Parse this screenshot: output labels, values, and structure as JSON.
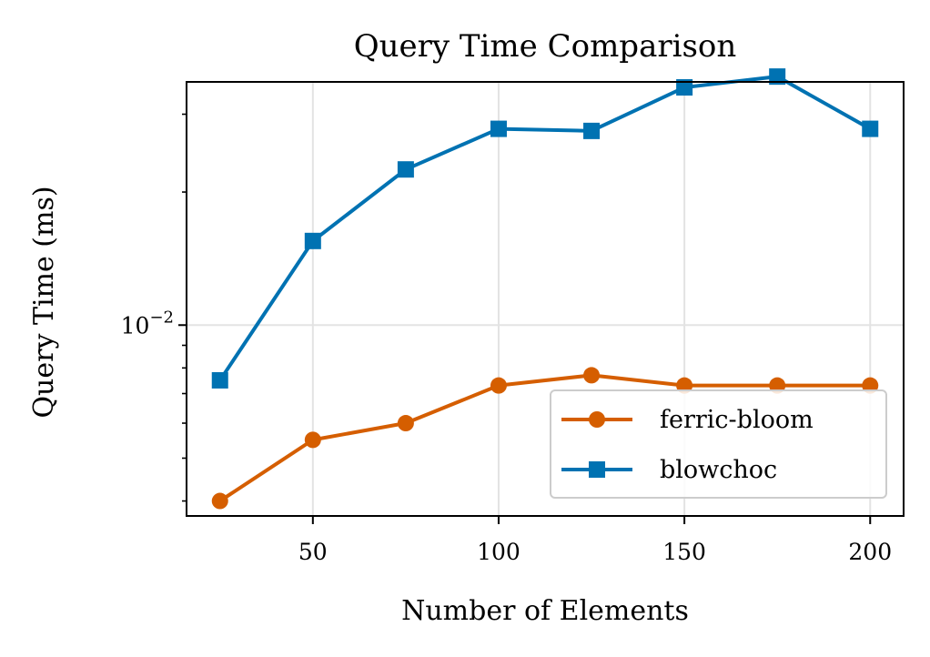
{
  "chart_data": {
    "type": "line",
    "title": "Query Time Comparison",
    "xlabel": "Number of Elements",
    "ylabel": "Query Time (ms)",
    "y_scale": "log",
    "xlim": [
      16,
      209
    ],
    "ylim": [
      0.0037,
      0.0355
    ],
    "x_ticks": [
      50,
      100,
      150,
      200
    ],
    "y_major_ticks": [
      {
        "value": 0.01,
        "label_base": "10",
        "label_exp": "−2"
      }
    ],
    "y_minor_ticks": [
      0.004,
      0.005,
      0.006,
      0.007,
      0.008,
      0.009,
      0.02,
      0.03
    ],
    "grid": true,
    "legend_position": "lower-right",
    "x": [
      25,
      50,
      75,
      100,
      125,
      150,
      175,
      200
    ],
    "series": [
      {
        "name": "ferric-bloom",
        "color": "#d55e00",
        "marker": "circle",
        "values": [
          0.004,
          0.0055,
          0.006,
          0.0073,
          0.0077,
          0.0073,
          0.0073,
          0.0073
        ]
      },
      {
        "name": "blowchoc",
        "color": "#0072b2",
        "marker": "square",
        "values": [
          0.0075,
          0.0155,
          0.0225,
          0.0278,
          0.0275,
          0.0345,
          0.0365,
          0.0278
        ]
      }
    ]
  }
}
